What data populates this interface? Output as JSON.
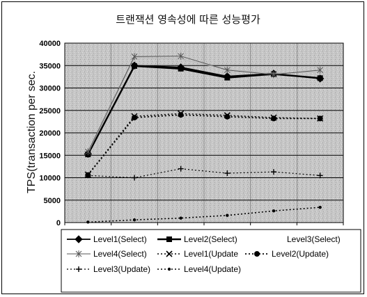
{
  "chart_data": {
    "type": "line",
    "title": "트랜잭션 영속성에 따른 성능평가",
    "xlabel": "",
    "ylabel": "TPS(transaction per sec.",
    "ylim": [
      0,
      40000
    ],
    "yticks": [
      0,
      5000,
      10000,
      15000,
      20000,
      25000,
      30000,
      35000,
      40000
    ],
    "x_points": 6,
    "grid": true,
    "legend_position": "bottom",
    "series": [
      {
        "name": "Level1(Select)",
        "values": [
          15300,
          35000,
          34600,
          32600,
          33200,
          32100
        ],
        "color": "#000000",
        "dash": "solid",
        "width": 1.8,
        "marker": "diamond"
      },
      {
        "name": "Level2(Select)",
        "values": [
          15200,
          34900,
          34300,
          32300,
          33100,
          32200
        ],
        "color": "#000000",
        "dash": "solid",
        "width": 2.4,
        "marker": "square"
      },
      {
        "name": "Level3(Select)",
        "values": [
          15600,
          36800,
          36400,
          34200,
          33300,
          33600
        ],
        "color": "#bbbbbb",
        "dash": "solid",
        "width": 1.2,
        "marker": "none"
      },
      {
        "name": "Level4(Select)",
        "values": [
          15800,
          37000,
          37100,
          34000,
          33000,
          34000
        ],
        "color": "#555555",
        "dash": "solid",
        "width": 1.0,
        "marker": "star"
      },
      {
        "name": "Level1(Update",
        "values": [
          10700,
          23700,
          24300,
          23900,
          23400,
          23200
        ],
        "color": "#000000",
        "dash": "dot",
        "width": 1.4,
        "marker": "x"
      },
      {
        "name": "Level2(Update)",
        "values": [
          10600,
          23400,
          24000,
          23600,
          23200,
          23200
        ],
        "color": "#000000",
        "dash": "dot",
        "width": 1.8,
        "marker": "circle"
      },
      {
        "name": "Level3(Update)",
        "values": [
          10500,
          10000,
          12000,
          11000,
          11300,
          10500
        ],
        "color": "#000000",
        "dash": "dot",
        "width": 1.2,
        "marker": "plus"
      },
      {
        "name": "Level4(Update)",
        "values": [
          100,
          600,
          1000,
          1600,
          2600,
          3400
        ],
        "color": "#000000",
        "dash": "dot",
        "width": 1.6,
        "marker": "dot"
      }
    ]
  }
}
